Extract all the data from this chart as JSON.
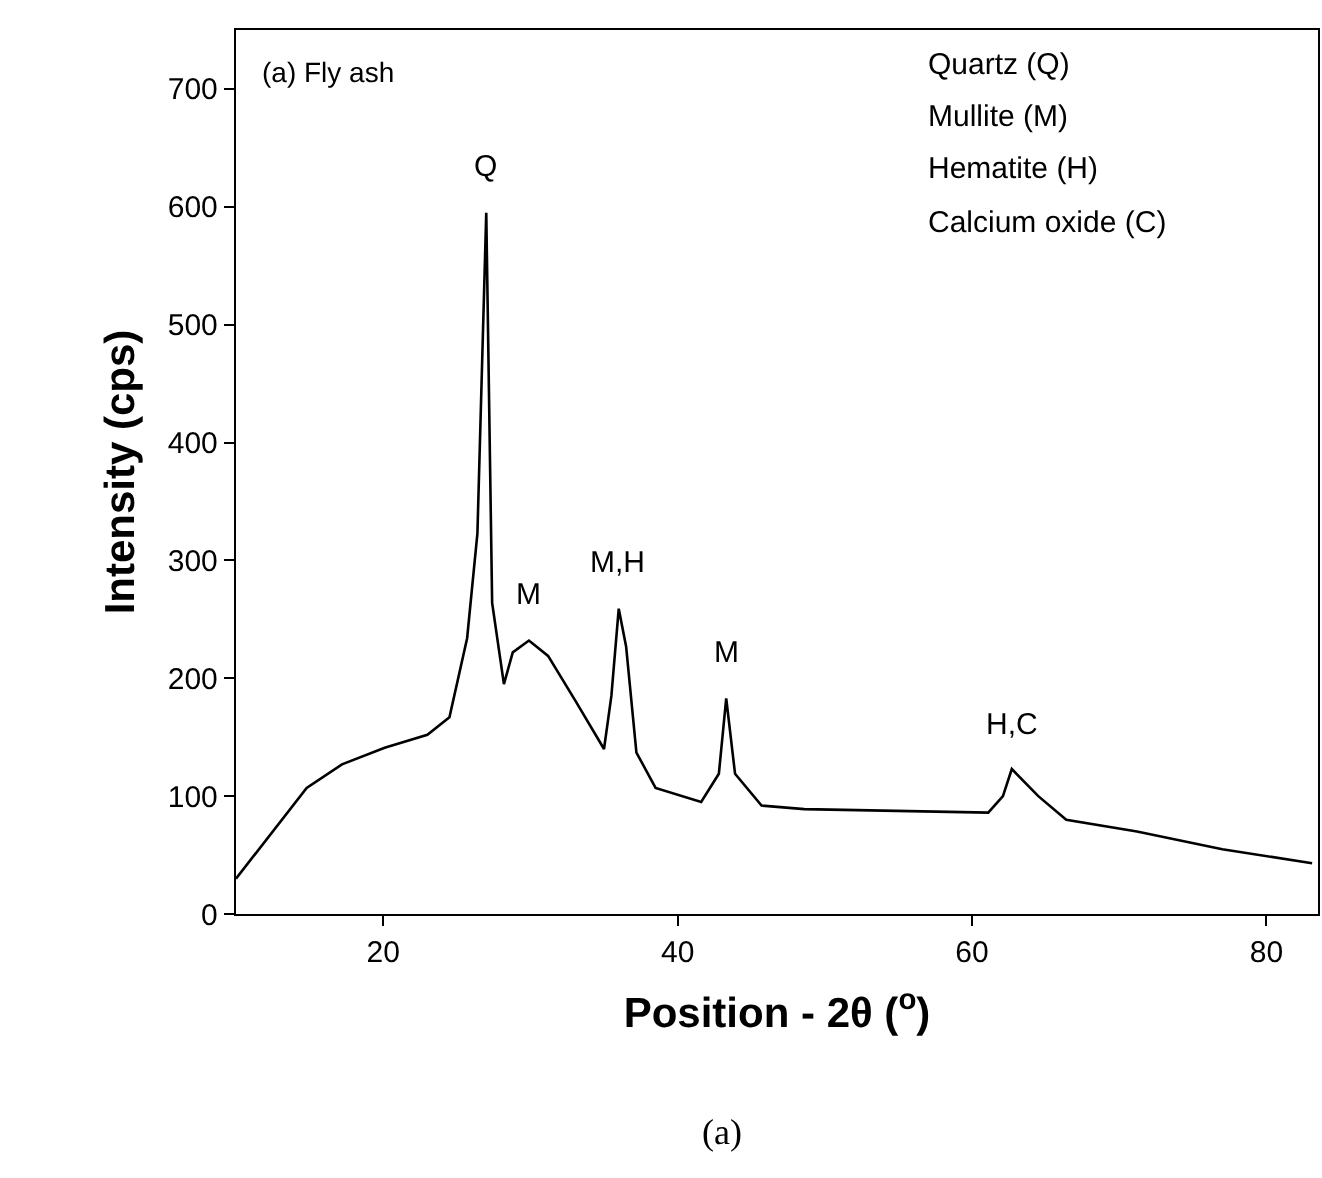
{
  "chart_data": {
    "type": "line",
    "xlabel": "Position - 2θ ($^{o}$)",
    "ylabel": "Intensity (cps)",
    "x": [
      10,
      14.8,
      17.2,
      20.1,
      23,
      24.5,
      25.7,
      26.4,
      27.0,
      27.4,
      28.2,
      28.8,
      29.9,
      31.2,
      33.1,
      35.0,
      35.5,
      36.0,
      36.5,
      37.2,
      38.5,
      41.6,
      42.8,
      43.3,
      43.9,
      45.7,
      48.6,
      61.1,
      62.1,
      62.7,
      64.5,
      66.4,
      71.2,
      77.0,
      83.1
    ],
    "series": [
      {
        "color": "#000000",
        "values": [
          30,
          107,
          127,
          141,
          152,
          167,
          234,
          323,
          595,
          264,
          195,
          222,
          232,
          219,
          180,
          140,
          185,
          259,
          227,
          137,
          107,
          95,
          119,
          183,
          119,
          92,
          89,
          86,
          100,
          123,
          100,
          80,
          70,
          55,
          43
        ]
      }
    ],
    "xlim": [
      10,
      83.5
    ],
    "xticks": [
      20,
      40,
      60,
      80
    ],
    "ylim": [
      0,
      750
    ],
    "yticks": [
      0,
      100,
      200,
      300,
      400,
      500,
      600,
      700
    ],
    "marker": "none",
    "line_style": "solid",
    "annotations": [
      {
        "text": "Q",
        "x": 27.0,
        "y": 595
      },
      {
        "text": "M",
        "x": 29.9,
        "y": 232
      },
      {
        "text": "M,H",
        "x": 36.0,
        "y": 259
      },
      {
        "text": "M",
        "x": 43.3,
        "y": 183
      },
      {
        "text": "H,C",
        "x": 62.7,
        "y": 123
      },
      "(a) Fly ash",
      "Quartz (Q)",
      "Mullite (M)",
      "Hematite (H)",
      "Calcium oxide (C)",
      "(a)"
    ]
  }
}
